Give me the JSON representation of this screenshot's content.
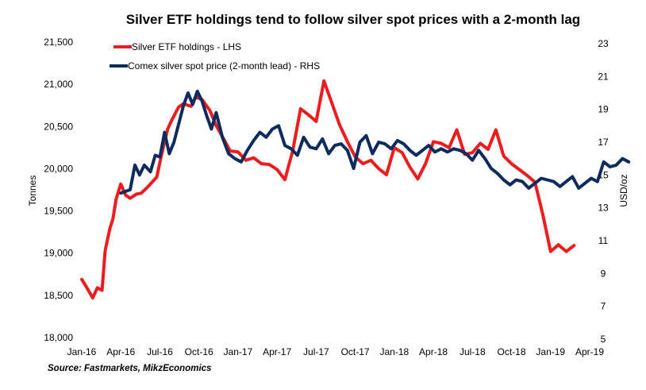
{
  "chart_data": {
    "type": "line",
    "title": "Silver ETF holdings tend to follow silver spot prices with a 2-month lag",
    "ylabel_left": "Tonnes",
    "ylabel_right": "USD/oz",
    "source": "Source: Fastmarkets, MikzEconomics",
    "grid": false,
    "legend_position": "top-left",
    "x_tick_labels": [
      "Jan-16",
      "Apr-16",
      "Jul-16",
      "Oct-16",
      "Jan-17",
      "Apr-17",
      "Jul-17",
      "Oct-17",
      "Jan-18",
      "Apr-18",
      "Jul-18",
      "Oct-18",
      "Jan-19",
      "Apr-19"
    ],
    "x_range": [
      "Jan-16",
      "Apr-19"
    ],
    "y_left_ticks": [
      "18,000",
      "18,500",
      "19,000",
      "19,500",
      "20,000",
      "20,500",
      "21,000",
      "21,500"
    ],
    "y_left_range": [
      18000,
      21500
    ],
    "y_right_ticks": [
      "5",
      "7",
      "9",
      "11",
      "13",
      "15",
      "17",
      "19",
      "21",
      "23"
    ],
    "y_right_range": [
      5,
      23
    ],
    "series": [
      {
        "name": "Silver ETF holdings - LHS",
        "axis": "left",
        "color": "#ee1c1c",
        "x": [
          2016.0,
          2016.03,
          2016.07,
          2016.1,
          2016.13,
          2016.15,
          2016.18,
          2016.2,
          2016.22,
          2016.25,
          2016.28,
          2016.31,
          2016.35,
          2016.38,
          2016.42,
          2016.45,
          2016.48,
          2016.51,
          2016.55,
          2016.58,
          2016.62,
          2016.65,
          2016.7,
          2016.73,
          2016.77,
          2016.82,
          2016.86,
          2016.9,
          2016.95,
          2017.0,
          2017.05,
          2017.1,
          2017.15,
          2017.2,
          2017.25,
          2017.3,
          2017.35,
          2017.4,
          2017.45,
          2017.5,
          2017.55,
          2017.6,
          2017.65,
          2017.7,
          2017.75,
          2017.8,
          2017.85,
          2017.9,
          2017.95,
          2018.0,
          2018.05,
          2018.1,
          2018.15,
          2018.2,
          2018.25,
          2018.3,
          2018.35,
          2018.4,
          2018.45,
          2018.5,
          2018.55,
          2018.6,
          2018.65,
          2018.7,
          2018.75,
          2018.8,
          2018.85,
          2018.9,
          2018.95,
          2019.0,
          2019.05,
          2019.1,
          2019.15
        ],
        "values": [
          18690,
          18600,
          18470,
          18590,
          18560,
          19030,
          19290,
          19410,
          19640,
          19820,
          19690,
          19650,
          19700,
          19710,
          19780,
          19840,
          19900,
          20160,
          20470,
          20590,
          20730,
          20770,
          20740,
          20850,
          20820,
          20690,
          20510,
          20380,
          20210,
          20200,
          20100,
          20130,
          20060,
          20050,
          19990,
          19870,
          20210,
          20710,
          20640,
          20560,
          21040,
          20780,
          20520,
          20320,
          20140,
          20060,
          20100,
          20000,
          19930,
          20250,
          20190,
          20020,
          19880,
          20060,
          20320,
          20300,
          20250,
          20460,
          20170,
          20190,
          20300,
          20230,
          20460,
          20150,
          20060,
          19990,
          19920,
          19840,
          19460,
          19020,
          19100,
          19020,
          19090
        ]
      },
      {
        "name": "Comex silver spot price (2-month lead) - RHS",
        "axis": "right",
        "color": "#0e2b5e",
        "x": [
          2016.25,
          2016.28,
          2016.31,
          2016.34,
          2016.37,
          2016.4,
          2016.44,
          2016.47,
          2016.5,
          2016.53,
          2016.56,
          2016.59,
          2016.62,
          2016.65,
          2016.68,
          2016.71,
          2016.74,
          2016.77,
          2016.8,
          2016.83,
          2016.86,
          2016.9,
          2016.94,
          2016.98,
          2017.02,
          2017.06,
          2017.1,
          2017.14,
          2017.18,
          2017.22,
          2017.26,
          2017.3,
          2017.34,
          2017.38,
          2017.42,
          2017.46,
          2017.5,
          2017.54,
          2017.58,
          2017.62,
          2017.66,
          2017.7,
          2017.74,
          2017.78,
          2017.82,
          2017.86,
          2017.9,
          2017.94,
          2017.98,
          2018.02,
          2018.06,
          2018.1,
          2018.14,
          2018.18,
          2018.22,
          2018.26,
          2018.3,
          2018.34,
          2018.38,
          2018.42,
          2018.46,
          2018.5,
          2018.54,
          2018.58,
          2018.62,
          2018.66,
          2018.7,
          2018.74,
          2018.78,
          2018.82,
          2018.86,
          2018.9,
          2018.94,
          2018.98,
          2019.02,
          2019.06,
          2019.1,
          2019.14,
          2019.18,
          2019.22,
          2019.26,
          2019.3,
          2019.34,
          2019.38,
          2019.42,
          2019.46,
          2019.5
        ],
        "values": [
          13.9,
          14.0,
          14.1,
          15.6,
          15.0,
          15.6,
          15.2,
          16.2,
          16.1,
          17.6,
          16.3,
          17.0,
          18.1,
          19.2,
          20.0,
          19.3,
          20.1,
          19.5,
          18.6,
          17.8,
          18.8,
          17.3,
          16.3,
          16.0,
          15.8,
          16.5,
          17.1,
          17.6,
          17.3,
          17.8,
          18.0,
          16.8,
          16.6,
          16.2,
          17.3,
          16.7,
          16.6,
          17.2,
          16.3,
          16.8,
          16.9,
          16.5,
          15.4,
          17.0,
          17.4,
          16.3,
          17.0,
          16.9,
          16.6,
          17.1,
          16.9,
          16.5,
          16.2,
          16.5,
          16.8,
          16.4,
          16.6,
          16.4,
          16.6,
          16.5,
          16.3,
          15.9,
          16.5,
          16.0,
          15.4,
          15.1,
          14.7,
          14.4,
          14.7,
          14.6,
          14.2,
          14.5,
          14.8,
          14.7,
          14.6,
          14.3,
          14.6,
          14.9,
          14.2,
          14.5,
          14.8,
          14.6,
          15.8,
          15.5,
          15.6,
          16.0,
          15.8
        ]
      }
    ]
  }
}
